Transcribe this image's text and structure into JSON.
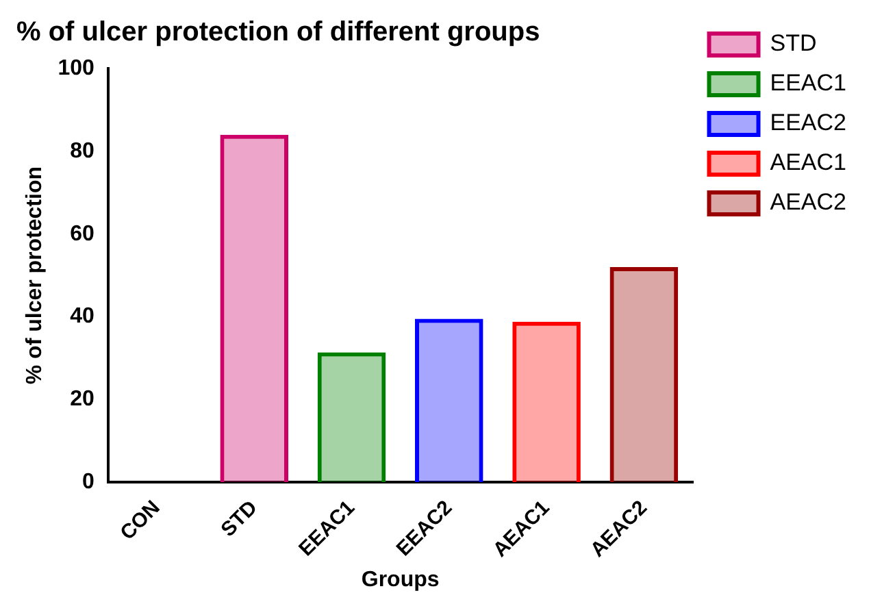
{
  "chart_data": {
    "type": "bar",
    "title": "% of ulcer protection of different groups",
    "xlabel": "Groups",
    "ylabel": "% of ulcer protection",
    "categories": [
      "CON",
      "STD",
      "EEAC1",
      "EEAC2",
      "AEAC1",
      "AEAC2"
    ],
    "series": [
      {
        "name": "STD",
        "color": "#cc0066",
        "values": [
          null,
          84,
          null,
          null,
          null,
          null
        ]
      },
      {
        "name": "EEAC1",
        "color": "#008000",
        "values": [
          null,
          null,
          31.4,
          null,
          null,
          null
        ]
      },
      {
        "name": "EEAC2",
        "color": "#0000ff",
        "values": [
          null,
          null,
          null,
          39.5,
          null,
          null
        ]
      },
      {
        "name": "AEAC1",
        "color": "#ff0000",
        "values": [
          null,
          null,
          null,
          null,
          38.8,
          null
        ]
      },
      {
        "name": "AEAC2",
        "color": "#990000",
        "values": [
          null,
          null,
          null,
          null,
          null,
          52
        ]
      }
    ],
    "ylim": [
      0,
      100
    ],
    "yticks": [
      0,
      20,
      40,
      60,
      80,
      100
    ],
    "grid": false,
    "legend": "right"
  }
}
